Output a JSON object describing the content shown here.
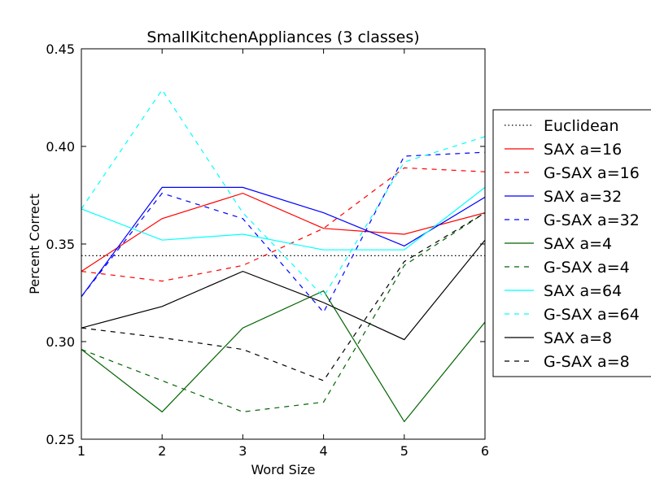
{
  "chart_data": {
    "type": "line",
    "title": "SmallKitchenAppliances (3 classes)",
    "xlabel": "Word Size",
    "ylabel": "Percent Correct",
    "xlim": [
      1,
      6
    ],
    "ylim": [
      0.25,
      0.45
    ],
    "x": [
      1,
      2,
      3,
      4,
      5,
      6
    ],
    "x_ticks": [
      "1",
      "2",
      "3",
      "4",
      "5",
      "6"
    ],
    "y_ticks": [
      "0.25",
      "0.30",
      "0.35",
      "0.40",
      "0.45"
    ],
    "y_tick_values": [
      0.25,
      0.3,
      0.35,
      0.4,
      0.45
    ],
    "grid": false,
    "legend_position": "outside-right",
    "series": [
      {
        "name": "Euclidean",
        "color": "#000000",
        "style": "dotted",
        "values": [
          0.344,
          0.344,
          0.344,
          0.344,
          0.344,
          0.344
        ]
      },
      {
        "name": "SAX a=16",
        "color": "#ff0000",
        "style": "solid",
        "values": [
          0.336,
          0.363,
          0.376,
          0.358,
          0.355,
          0.366
        ]
      },
      {
        "name": "G-SAX a=16",
        "color": "#ff0000",
        "style": "dashed",
        "values": [
          0.336,
          0.331,
          0.339,
          0.358,
          0.389,
          0.387
        ]
      },
      {
        "name": "SAX a=32",
        "color": "#0000ff",
        "style": "solid",
        "values": [
          0.323,
          0.379,
          0.379,
          0.366,
          0.349,
          0.374
        ]
      },
      {
        "name": "G-SAX a=32",
        "color": "#0000ff",
        "style": "dashed",
        "values": [
          0.323,
          0.376,
          0.363,
          0.315,
          0.395,
          0.397
        ]
      },
      {
        "name": "SAX a=4",
        "color": "#006400",
        "style": "solid",
        "values": [
          0.296,
          0.264,
          0.307,
          0.326,
          0.259,
          0.31
        ]
      },
      {
        "name": "G-SAX a=4",
        "color": "#006400",
        "style": "dashed",
        "values": [
          0.296,
          0.28,
          0.264,
          0.269,
          0.339,
          0.366
        ]
      },
      {
        "name": "SAX a=64",
        "color": "#00ffff",
        "style": "solid",
        "values": [
          0.368,
          0.352,
          0.355,
          0.347,
          0.347,
          0.379
        ]
      },
      {
        "name": "G-SAX a=64",
        "color": "#00ffff",
        "style": "dashed",
        "values": [
          0.368,
          0.429,
          0.366,
          0.323,
          0.392,
          0.405
        ]
      },
      {
        "name": "SAX a=8",
        "color": "#000000",
        "style": "solid",
        "values": [
          0.307,
          0.318,
          0.336,
          0.32,
          0.301,
          0.352
        ]
      },
      {
        "name": "G-SAX a=8",
        "color": "#000000",
        "style": "dashed",
        "values": [
          0.307,
          0.302,
          0.296,
          0.28,
          0.341,
          0.366
        ]
      }
    ]
  }
}
